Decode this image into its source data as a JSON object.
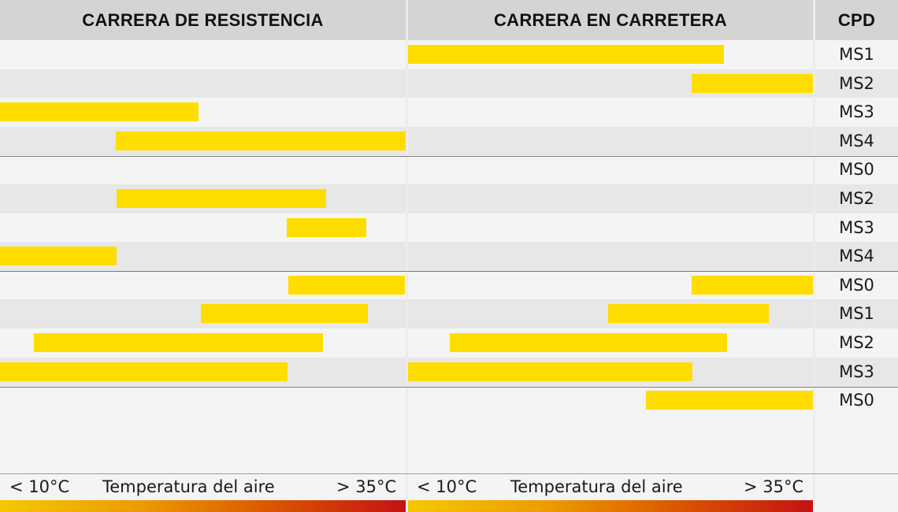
{
  "headers": {
    "endurance": "CARRERA DE RESISTENCIA",
    "road": "CARRERA EN CARRETERA",
    "cpd": "CPD"
  },
  "legend": {
    "endurance": {
      "low": "< 10°C",
      "mid": "Temperatura del aire",
      "high": "> 35°C"
    },
    "road": {
      "low": "< 10°C",
      "mid": "Temperatura del aire",
      "high": "> 35°C"
    }
  },
  "colors": {
    "bar": "#ffdd00",
    "header_bg": "#d4d4d4",
    "gradient_start": "#f6c800",
    "gradient_end": "#c41212"
  },
  "chart_data": {
    "type": "bar",
    "subtype": "floating-range",
    "x_scale": "relative air temperature, 0 = < 10°C, 1 = > 35°C",
    "rows": [
      {
        "label": "MS1",
        "group": 1,
        "endurance": null,
        "road": [
          0.0,
          0.78
        ]
      },
      {
        "label": "MS2",
        "group": 1,
        "endurance": null,
        "road": [
          0.7,
          1.0
        ]
      },
      {
        "label": "MS3",
        "group": 1,
        "endurance": [
          0.0,
          0.49
        ],
        "road": null
      },
      {
        "label": "MS4",
        "group": 1,
        "endurance": [
          0.285,
          1.0
        ],
        "road": null
      },
      {
        "label": "MS0",
        "group": 2,
        "endurance": null,
        "road": null
      },
      {
        "label": "MS2",
        "group": 2,
        "endurance": [
          0.287,
          0.804
        ],
        "road": null
      },
      {
        "label": "MS3",
        "group": 2,
        "endurance": [
          0.707,
          0.902
        ],
        "road": null
      },
      {
        "label": "MS4",
        "group": 2,
        "endurance": [
          0.0,
          0.287
        ],
        "road": null
      },
      {
        "label": "MS0",
        "group": 3,
        "endurance": [
          0.711,
          0.998
        ],
        "road": [
          0.7,
          1.0
        ]
      },
      {
        "label": "MS1",
        "group": 3,
        "endurance": [
          0.495,
          0.906
        ],
        "road": [
          0.495,
          0.892
        ]
      },
      {
        "label": "MS2",
        "group": 3,
        "endurance": [
          0.083,
          0.797
        ],
        "road": [
          0.103,
          0.788
        ]
      },
      {
        "label": "MS3",
        "group": 3,
        "endurance": [
          0.0,
          0.709
        ],
        "road": [
          0.0,
          0.702
        ]
      },
      {
        "label": "MS0",
        "group": 4,
        "endurance": null,
        "road": [
          0.587,
          1.0
        ]
      }
    ]
  }
}
